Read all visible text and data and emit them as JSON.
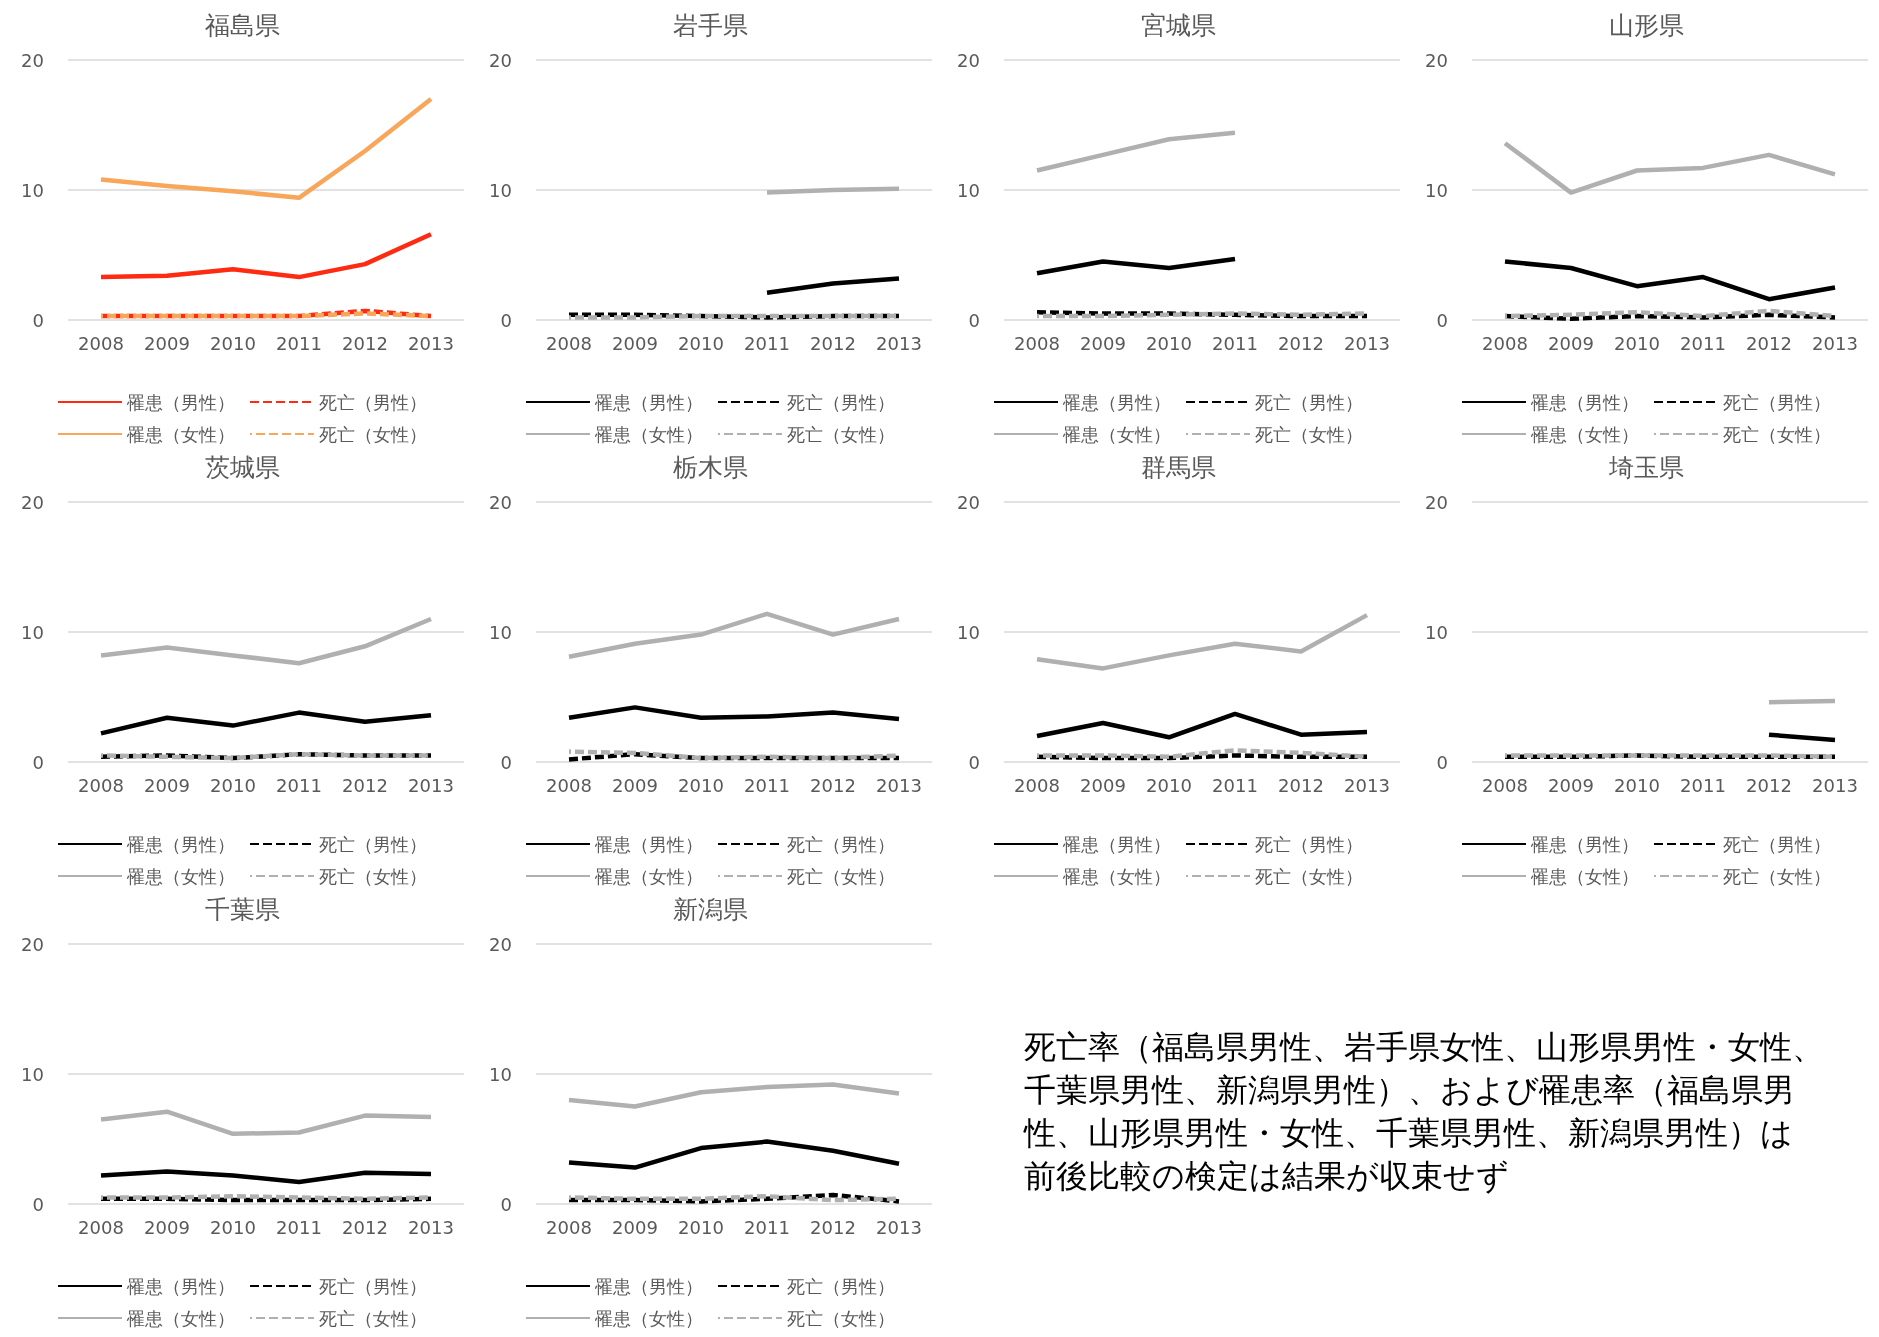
{
  "chart_data": [
    {
      "type": "line",
      "title": "福島県",
      "categories": [
        "2008",
        "2009",
        "2010",
        "2011",
        "2012",
        "2013"
      ],
      "ylim": [
        0,
        20
      ],
      "yticks": [
        0,
        10,
        20
      ],
      "grid": "y",
      "legend": "bottom",
      "series": [
        {
          "name": "罹患（男性）",
          "color": "#ff2a12",
          "values": [
            3.3,
            3.4,
            3.9,
            3.3,
            4.3,
            6.6
          ]
        },
        {
          "name": "死亡（男性）",
          "color": "#ff2a12",
          "line_style": "dashed",
          "values": [
            0.3,
            0.3,
            0.3,
            0.3,
            0.7,
            0.3
          ]
        },
        {
          "name": "罹患（女性）",
          "color": "#f8a65a",
          "values": [
            10.8,
            10.3,
            9.9,
            9.4,
            13.0,
            17.0
          ]
        },
        {
          "name": "死亡（女性）",
          "color": "#f8a65a",
          "line_style": "dashed",
          "values": [
            0.3,
            0.3,
            0.3,
            0.3,
            0.5,
            0.3
          ]
        }
      ]
    },
    {
      "type": "line",
      "title": "岩手県",
      "categories": [
        "2008",
        "2009",
        "2010",
        "2011",
        "2012",
        "2013"
      ],
      "ylim": [
        0,
        20
      ],
      "yticks": [
        0,
        10,
        20
      ],
      "grid": "y",
      "legend": "bottom",
      "series": [
        {
          "name": "罹患（男性）",
          "color": "#000000",
          "values": [
            null,
            null,
            null,
            2.1,
            2.8,
            3.2
          ]
        },
        {
          "name": "死亡（男性）",
          "color": "#000000",
          "line_style": "dashed",
          "values": [
            0.4,
            0.4,
            0.3,
            0.2,
            0.3,
            0.3
          ]
        },
        {
          "name": "罹患（女性）",
          "color": "#b0b0b0",
          "values": [
            null,
            null,
            null,
            9.8,
            10.0,
            10.1
          ]
        },
        {
          "name": "死亡（女性）",
          "color": "#b0b0b0",
          "line_style": "dashed",
          "values": [
            0.2,
            0.2,
            0.3,
            0.3,
            0.3,
            0.3
          ]
        }
      ]
    },
    {
      "type": "line",
      "title": "宮城県",
      "categories": [
        "2008",
        "2009",
        "2010",
        "2011",
        "2012",
        "2013"
      ],
      "ylim": [
        0,
        20
      ],
      "yticks": [
        0,
        10,
        20
      ],
      "grid": "y",
      "legend": "bottom",
      "series": [
        {
          "name": "罹患（男性）",
          "color": "#000000",
          "values": [
            3.6,
            4.5,
            4.0,
            4.7,
            null,
            null
          ]
        },
        {
          "name": "死亡（男性）",
          "color": "#000000",
          "line_style": "dashed",
          "values": [
            0.6,
            0.5,
            0.5,
            0.4,
            0.3,
            0.3
          ]
        },
        {
          "name": "罹患（女性）",
          "color": "#b0b0b0",
          "values": [
            11.5,
            12.7,
            13.9,
            14.4,
            null,
            null
          ]
        },
        {
          "name": "死亡（女性）",
          "color": "#b0b0b0",
          "line_style": "dashed",
          "values": [
            0.3,
            0.3,
            0.4,
            0.5,
            0.4,
            0.5
          ]
        }
      ]
    },
    {
      "type": "line",
      "title": "山形県",
      "categories": [
        "2008",
        "2009",
        "2010",
        "2011",
        "2012",
        "2013"
      ],
      "ylim": [
        0,
        20
      ],
      "yticks": [
        0,
        10,
        20
      ],
      "grid": "y",
      "legend": "bottom",
      "series": [
        {
          "name": "罹患（男性）",
          "color": "#000000",
          "values": [
            4.5,
            4.0,
            2.6,
            3.3,
            1.6,
            2.5
          ]
        },
        {
          "name": "死亡（男性）",
          "color": "#000000",
          "line_style": "dashed",
          "values": [
            0.3,
            0.1,
            0.3,
            0.2,
            0.4,
            0.2
          ]
        },
        {
          "name": "罹患（女性）",
          "color": "#b0b0b0",
          "values": [
            13.6,
            9.8,
            11.5,
            11.7,
            12.7,
            11.2
          ]
        },
        {
          "name": "死亡（女性）",
          "color": "#b0b0b0",
          "line_style": "dashed",
          "values": [
            0.3,
            0.4,
            0.6,
            0.3,
            0.7,
            0.3
          ]
        }
      ]
    },
    {
      "type": "line",
      "title": "茨城県",
      "categories": [
        "2008",
        "2009",
        "2010",
        "2011",
        "2012",
        "2013"
      ],
      "ylim": [
        0,
        20
      ],
      "yticks": [
        0,
        10,
        20
      ],
      "grid": "y",
      "legend": "bottom",
      "series": [
        {
          "name": "罹患（男性）",
          "color": "#000000",
          "values": [
            2.2,
            3.4,
            2.8,
            3.8,
            3.1,
            3.6
          ]
        },
        {
          "name": "死亡（男性）",
          "color": "#000000",
          "line_style": "dashed",
          "values": [
            0.4,
            0.5,
            0.3,
            0.6,
            0.5,
            0.5
          ]
        },
        {
          "name": "罹患（女性）",
          "color": "#b0b0b0",
          "values": [
            8.2,
            8.8,
            8.2,
            7.6,
            8.9,
            11.0
          ]
        },
        {
          "name": "死亡（女性）",
          "color": "#b0b0b0",
          "line_style": "dashed",
          "values": [
            0.5,
            0.4,
            0.3,
            0.6,
            0.5,
            0.5
          ]
        }
      ]
    },
    {
      "type": "line",
      "title": "栃木県",
      "categories": [
        "2008",
        "2009",
        "2010",
        "2011",
        "2012",
        "2013"
      ],
      "ylim": [
        0,
        20
      ],
      "yticks": [
        0,
        10,
        20
      ],
      "grid": "y",
      "legend": "bottom",
      "series": [
        {
          "name": "罹患（男性）",
          "color": "#000000",
          "values": [
            3.4,
            4.2,
            3.4,
            3.5,
            3.8,
            3.3
          ]
        },
        {
          "name": "死亡（男性）",
          "color": "#000000",
          "line_style": "dashed",
          "values": [
            0.2,
            0.6,
            0.3,
            0.3,
            0.3,
            0.3
          ]
        },
        {
          "name": "罹患（女性）",
          "color": "#b0b0b0",
          "values": [
            8.1,
            9.1,
            9.8,
            11.4,
            9.8,
            11.0
          ]
        },
        {
          "name": "死亡（女性）",
          "color": "#b0b0b0",
          "line_style": "dashed",
          "values": [
            0.8,
            0.7,
            0.3,
            0.4,
            0.3,
            0.5
          ]
        }
      ]
    },
    {
      "type": "line",
      "title": "群馬県",
      "categories": [
        "2008",
        "2009",
        "2010",
        "2011",
        "2012",
        "2013"
      ],
      "ylim": [
        0,
        20
      ],
      "yticks": [
        0,
        10,
        20
      ],
      "grid": "y",
      "legend": "bottom",
      "series": [
        {
          "name": "罹患（男性）",
          "color": "#000000",
          "values": [
            2.0,
            3.0,
            1.9,
            3.7,
            2.1,
            2.3
          ]
        },
        {
          "name": "死亡（男性）",
          "color": "#000000",
          "line_style": "dashed",
          "values": [
            0.4,
            0.3,
            0.3,
            0.5,
            0.4,
            0.4
          ]
        },
        {
          "name": "罹患（女性）",
          "color": "#b0b0b0",
          "values": [
            7.9,
            7.2,
            8.2,
            9.1,
            8.5,
            11.3
          ]
        },
        {
          "name": "死亡（女性）",
          "color": "#b0b0b0",
          "line_style": "dashed",
          "values": [
            0.5,
            0.5,
            0.4,
            0.9,
            0.7,
            0.4
          ]
        }
      ]
    },
    {
      "type": "line",
      "title": "埼玉県",
      "categories": [
        "2008",
        "2009",
        "2010",
        "2011",
        "2012",
        "2013"
      ],
      "ylim": [
        0,
        20
      ],
      "yticks": [
        0,
        10,
        20
      ],
      "grid": "y",
      "legend": "bottom",
      "series": [
        {
          "name": "罹患（男性）",
          "color": "#000000",
          "values": [
            null,
            null,
            null,
            null,
            2.1,
            1.7
          ]
        },
        {
          "name": "死亡（男性）",
          "color": "#000000",
          "line_style": "dashed",
          "values": [
            0.4,
            0.4,
            0.5,
            0.4,
            0.4,
            0.4
          ]
        },
        {
          "name": "罹患（女性）",
          "color": "#b0b0b0",
          "values": [
            null,
            null,
            null,
            null,
            4.6,
            4.7
          ]
        },
        {
          "name": "死亡（女性）",
          "color": "#b0b0b0",
          "line_style": "dashed",
          "values": [
            0.5,
            0.5,
            0.5,
            0.5,
            0.5,
            0.4
          ]
        }
      ]
    },
    {
      "type": "line",
      "title": "千葉県",
      "categories": [
        "2008",
        "2009",
        "2010",
        "2011",
        "2012",
        "2013"
      ],
      "ylim": [
        0,
        20
      ],
      "yticks": [
        0,
        10,
        20
      ],
      "grid": "y",
      "legend": "bottom",
      "series": [
        {
          "name": "罹患（男性）",
          "color": "#000000",
          "values": [
            2.2,
            2.5,
            2.2,
            1.7,
            2.4,
            2.3
          ]
        },
        {
          "name": "死亡（男性）",
          "color": "#000000",
          "line_style": "dashed",
          "values": [
            0.4,
            0.4,
            0.3,
            0.3,
            0.3,
            0.4
          ]
        },
        {
          "name": "罹患（女性）",
          "color": "#b0b0b0",
          "values": [
            6.5,
            7.1,
            5.4,
            5.5,
            6.8,
            6.7
          ]
        },
        {
          "name": "死亡（女性）",
          "color": "#b0b0b0",
          "line_style": "dashed",
          "values": [
            0.5,
            0.5,
            0.6,
            0.5,
            0.4,
            0.5
          ]
        }
      ]
    },
    {
      "type": "line",
      "title": "新潟県",
      "categories": [
        "2008",
        "2009",
        "2010",
        "2011",
        "2012",
        "2013"
      ],
      "ylim": [
        0,
        20
      ],
      "yticks": [
        0,
        10,
        20
      ],
      "grid": "y",
      "legend": "bottom",
      "series": [
        {
          "name": "罹患（男性）",
          "color": "#000000",
          "values": [
            3.2,
            2.8,
            4.3,
            4.8,
            4.1,
            3.1
          ]
        },
        {
          "name": "死亡（男性）",
          "color": "#000000",
          "line_style": "dashed",
          "values": [
            0.3,
            0.3,
            0.2,
            0.4,
            0.7,
            0.2
          ]
        },
        {
          "name": "罹患（女性）",
          "color": "#b0b0b0",
          "values": [
            8.0,
            7.5,
            8.6,
            9.0,
            9.2,
            8.5
          ]
        },
        {
          "name": "死亡（女性）",
          "color": "#b0b0b0",
          "line_style": "dashed",
          "values": [
            0.5,
            0.4,
            0.4,
            0.6,
            0.3,
            0.4
          ]
        }
      ]
    },
    {
      "type": "other",
      "annotations": [
        "死亡率（福島県男性、岩手県女性、山形県男性・女性、千葉県男性、新潟県男性）、および罹患率（福島県男性、山形県男性・女性、千葉県男性、新潟県男性）は前後比較の検定は結果が収束せず"
      ]
    }
  ]
}
